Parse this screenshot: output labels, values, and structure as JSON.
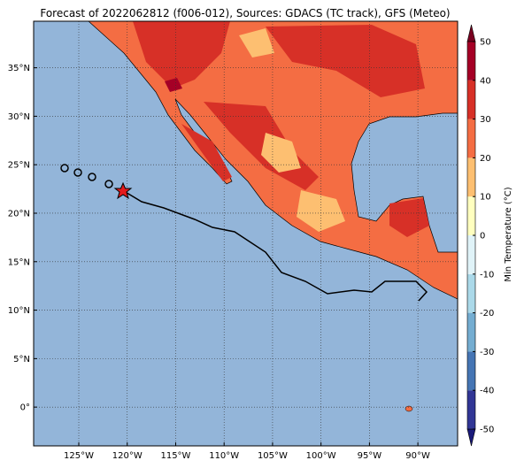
{
  "title": "Forecast of 2022062812 (f006-012), Sources: GDACS (TC track), GFS (Meteo)",
  "map": {
    "lon_range": [
      -129.66,
      -85.9
    ],
    "lat_range": [
      -4.0,
      39.8
    ],
    "lon_ticks": [
      {
        "value": -125,
        "label": "125°W"
      },
      {
        "value": -120,
        "label": "120°W"
      },
      {
        "value": -115,
        "label": "115°W"
      },
      {
        "value": -110,
        "label": "110°W"
      },
      {
        "value": -105,
        "label": "105°W"
      },
      {
        "value": -100,
        "label": "100°W"
      },
      {
        "value": -95,
        "label": "95°W"
      },
      {
        "value": -90,
        "label": "90°W"
      }
    ],
    "lat_ticks": [
      {
        "value": 0,
        "label": "0°"
      },
      {
        "value": 5,
        "label": "5°N"
      },
      {
        "value": 10,
        "label": "10°N"
      },
      {
        "value": 15,
        "label": "15°N"
      },
      {
        "value": 20,
        "label": "20°N"
      },
      {
        "value": 25,
        "label": "25°N"
      },
      {
        "value": 30,
        "label": "30°N"
      },
      {
        "value": 35,
        "label": "35°N"
      }
    ],
    "grid": true
  },
  "colorbar": {
    "label": "Min Temperature (°C)",
    "ticks": [
      -50,
      -40,
      -30,
      -20,
      -10,
      0,
      10,
      20,
      30,
      40,
      50
    ],
    "colors": [
      "#313695",
      "#4575b4",
      "#74add1",
      "#abd9e9",
      "#e0f3f8",
      "#ffffbf",
      "#fdbf71",
      "#f46d43",
      "#d73027",
      "#a50026"
    ],
    "under_color": "#1a1a7a",
    "over_color": "#7a0020"
  }
}
